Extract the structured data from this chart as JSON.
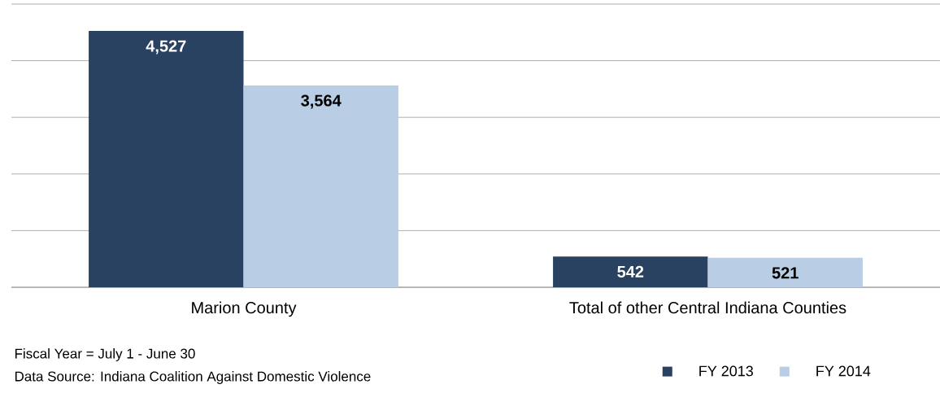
{
  "chart_data": {
    "type": "bar",
    "categories": [
      "Marion County",
      "Total of other Central Indiana Counties"
    ],
    "series": [
      {
        "name": "FY 2013",
        "color": "#2a4262",
        "values": [
          4527,
          542
        ],
        "value_labels": [
          "4,527",
          "542"
        ]
      },
      {
        "name": "FY 2014",
        "color": "#b9cde5",
        "values": [
          3564,
          521
        ],
        "value_labels": [
          "3,564",
          "521"
        ]
      }
    ],
    "ylim": [
      0,
      5000
    ],
    "yticks": [
      {
        "value": 0,
        "label": null
      },
      {
        "value": 1000,
        "label": null
      },
      {
        "value": 2000,
        "label": null
      },
      {
        "value": 3000,
        "label": null
      },
      {
        "value": 4000,
        "label": null
      },
      {
        "value": 5000,
        "label": null
      }
    ],
    "tick_labels": "x",
    "grid": "y",
    "legend": "bottom right",
    "annotations": [
      "Fiscal Year = July 1 - June 30",
      "Data Source: Indiana Coalition Against Domestic Violence"
    ]
  }
}
